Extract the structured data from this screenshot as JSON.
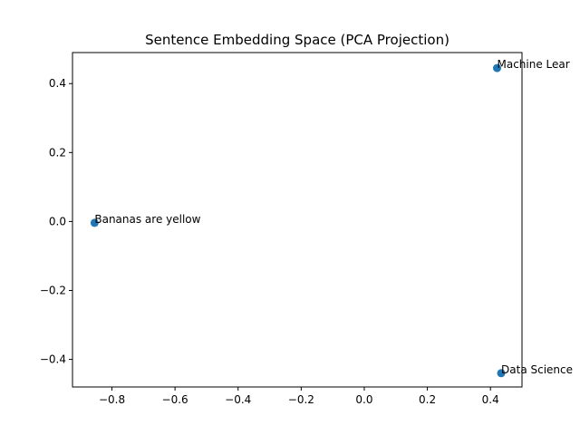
{
  "chart_data": {
    "type": "scatter",
    "title": "Sentence Embedding Space (PCA Projection)",
    "xlabel": "",
    "ylabel": "",
    "xlim": [
      -0.925,
      0.5
    ],
    "ylim": [
      -0.48,
      0.49
    ],
    "xticks": [
      -0.8,
      -0.6,
      -0.4,
      -0.2,
      0.0,
      0.2,
      0.4
    ],
    "xtick_labels": [
      "−0.8",
      "−0.6",
      "−0.4",
      "−0.2",
      "0.0",
      "0.2",
      "0.4"
    ],
    "yticks": [
      -0.4,
      -0.2,
      0.0,
      0.2,
      0.4
    ],
    "ytick_labels": [
      "−0.4",
      "−0.2",
      "0.0",
      "0.2",
      "0.4"
    ],
    "grid": false,
    "marker_color": "#1f77b4",
    "points": [
      {
        "x": 0.421,
        "y": 0.445,
        "label": "Machine Lear"
      },
      {
        "x": -0.855,
        "y": -0.004,
        "label": "Bananas are yellow"
      },
      {
        "x": 0.434,
        "y": -0.44,
        "label": "Data Science"
      }
    ]
  }
}
